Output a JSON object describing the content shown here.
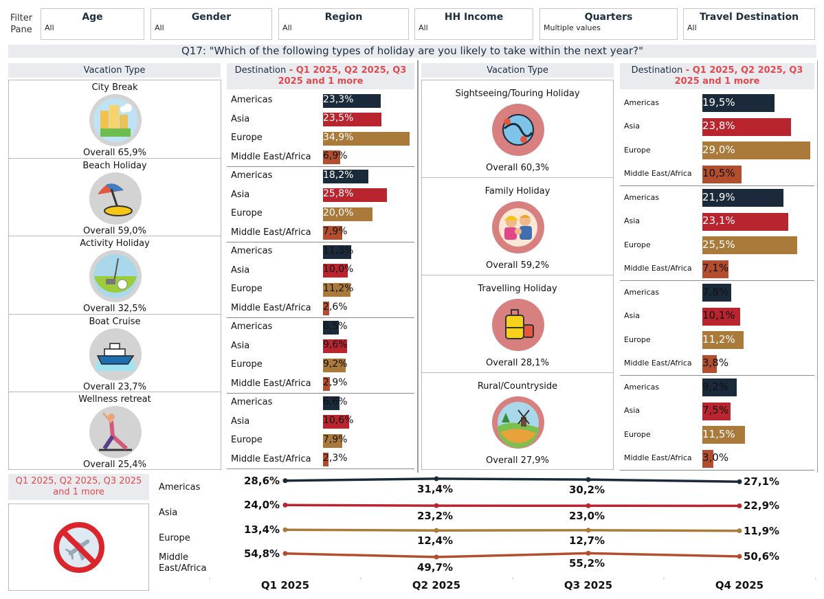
{
  "filter_pane_label": "Filter\nPane",
  "filters": [
    {
      "title": "Age",
      "value": "All"
    },
    {
      "title": "Gender",
      "value": "All"
    },
    {
      "title": "Region",
      "value": "All"
    },
    {
      "title": "HH Income",
      "value": "All"
    },
    {
      "title": "Quarters",
      "value": "Multiple values"
    },
    {
      "title": "Travel Destination",
      "value": "All"
    }
  ],
  "question": "Q17: \"Which of the following types of holiday are you likely to take within the next year?\"",
  "vacation_type_header": "Vacation Type",
  "destination_header_prefix": "Destination",
  "destination_header_selection": " - Q1 2025, Q2 2025, Q3 2025 and 1 more",
  "destination_labels": [
    "Americas",
    "Asia",
    "Europe",
    "Middle East/Africa"
  ],
  "colors": {
    "Americas": "#1b2a3a",
    "Asia": "#b8252f",
    "Europe": "#a97a3a",
    "Middle East/Africa": "#b24e2e",
    "header_bg": "#e9ebef",
    "highlight_red": "#e04a4f"
  },
  "left_panel": [
    {
      "name": "City Break",
      "overall": "Overall 65,9%",
      "icon": "city-buildings-icon",
      "values": [
        23.3,
        23.5,
        34.9,
        6.9
      ]
    },
    {
      "name": "Beach Holiday",
      "overall": "Overall 59,0%",
      "icon": "beach-umbrella-icon",
      "values": [
        18.2,
        25.8,
        20.0,
        7.9
      ]
    },
    {
      "name": "Activity Holiday",
      "overall": "Overall 32,5%",
      "icon": "golf-icon",
      "values": [
        11.3,
        10.0,
        11.2,
        2.6
      ]
    },
    {
      "name": "Boat Cruise",
      "overall": "Overall 23,7%",
      "icon": "cruise-ship-icon",
      "values": [
        6.5,
        9.6,
        9.2,
        2.9
      ]
    },
    {
      "name": "Wellness retreat",
      "overall": "Overall 25,4%",
      "icon": "yoga-icon",
      "values": [
        6.6,
        10.6,
        7.9,
        2.3
      ]
    }
  ],
  "right_panel": [
    {
      "name": "Sightseeing/Touring Holiday",
      "overall": "Overall 60,3%",
      "icon": "route-map-icon",
      "values": [
        19.5,
        23.8,
        29.0,
        10.5
      ]
    },
    {
      "name": "Family Holiday",
      "overall": "Overall 59,2%",
      "icon": "family-icon",
      "values": [
        21.9,
        23.1,
        25.5,
        7.1
      ]
    },
    {
      "name": "Travelling Holiday",
      "overall": "Overall 28,1%",
      "icon": "suitcase-icon",
      "values": [
        7.8,
        10.1,
        11.2,
        3.8
      ]
    },
    {
      "name": "Rural/Countryside",
      "overall": "Overall 27,9%",
      "icon": "windmill-countryside-icon",
      "values": [
        9.2,
        7.5,
        11.5,
        3.0
      ]
    }
  ],
  "bottom": {
    "selection_label": "Q1 2025, Q2 2025, Q3 2025 and 1 more",
    "icon": "no-flights-icon"
  },
  "chart_data": {
    "type": "line",
    "categories": [
      "Q1 2025",
      "Q2 2025",
      "Q3 2025",
      "Q4 2025"
    ],
    "series": [
      {
        "name": "Americas",
        "values": [
          28.6,
          31.4,
          30.2,
          27.1
        ]
      },
      {
        "name": "Asia",
        "values": [
          24.0,
          23.2,
          23.0,
          22.9
        ]
      },
      {
        "name": "Europe",
        "values": [
          13.4,
          12.4,
          12.7,
          11.9
        ]
      },
      {
        "name": "Middle East/Africa",
        "values": [
          54.8,
          49.7,
          55.2,
          50.6
        ]
      }
    ]
  }
}
